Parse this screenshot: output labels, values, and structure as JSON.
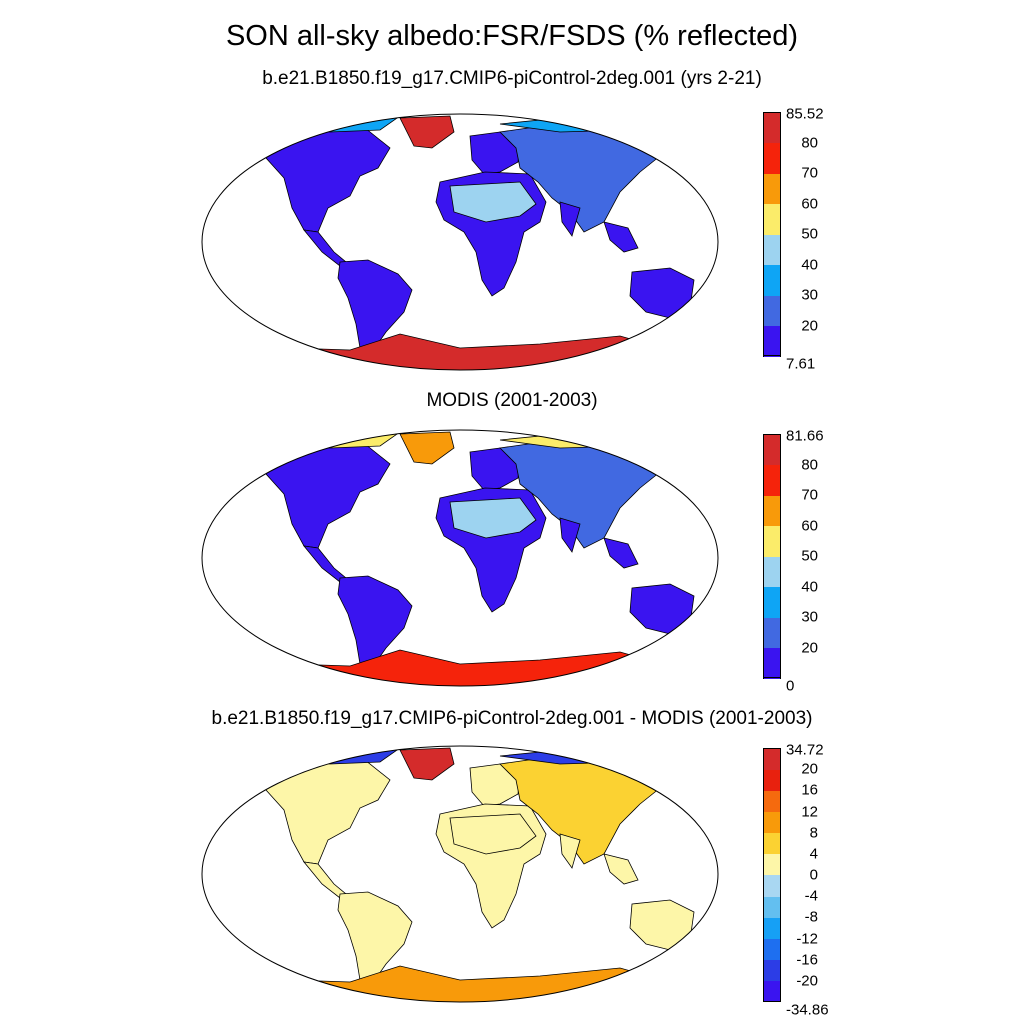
{
  "title": "SON all-sky albedo:FSR/FSDS (% reflected)",
  "panels": [
    {
      "subtitle": "b.e21.B1850.f19_g17.CMIP6-piControl-2deg.001 (yrs 2-21)",
      "colorbar": {
        "colors": [
          "#3a14f0",
          "#4169e1",
          "#0ea5f5",
          "#9dd3f0",
          "#fbec6a",
          "#f89a0a",
          "#f5230b",
          "#d42b2b"
        ],
        "labels": [
          "7.61",
          "20",
          "30",
          "40",
          "50",
          "60",
          "70",
          "80",
          "85.52"
        ]
      },
      "fills": {
        "land": "#3a14f0",
        "sahara": "#9dd3f0",
        "asia": "#4169e1",
        "greenland": "#d42b2b",
        "antarctica": "#d42b2b",
        "arctic": "#0ea5f5"
      }
    },
    {
      "subtitle": "MODIS (2001-2003)",
      "colorbar": {
        "colors": [
          "#3a14f0",
          "#4169e1",
          "#0ea5f5",
          "#9dd3f0",
          "#fbec6a",
          "#f89a0a",
          "#f5230b",
          "#d42b2b"
        ],
        "labels": [
          "0",
          "20",
          "30",
          "40",
          "50",
          "60",
          "70",
          "80",
          "81.66"
        ]
      },
      "fills": {
        "land": "#3a14f0",
        "sahara": "#9dd3f0",
        "asia": "#4169e1",
        "greenland": "#f89a0a",
        "antarctica": "#f5230b",
        "arctic": "#fbec6a"
      }
    },
    {
      "subtitle": "b.e21.B1850.f19_g17.CMIP6-piControl-2deg.001 - MODIS (2001-2003)",
      "colorbar": {
        "colors": [
          "#3a14f0",
          "#2c3de6",
          "#1e6ff0",
          "#16a0f5",
          "#63bff0",
          "#a9d7f2",
          "#fdf6a8",
          "#fbd232",
          "#f89a0a",
          "#f56a0e",
          "#e8210e",
          "#d42b2b"
        ],
        "labels": [
          "-34.86",
          "-20",
          "-16",
          "-12",
          "-8",
          "-4",
          "0",
          "4",
          "8",
          "12",
          "16",
          "20",
          "34.72"
        ]
      },
      "fills": {
        "land": "#fdf6a8",
        "sahara": "#fdf6a8",
        "asia": "#fbd232",
        "greenland": "#d42b2b",
        "antarctica": "#f89a0a",
        "arctic": "#2c3de6"
      }
    }
  ]
}
